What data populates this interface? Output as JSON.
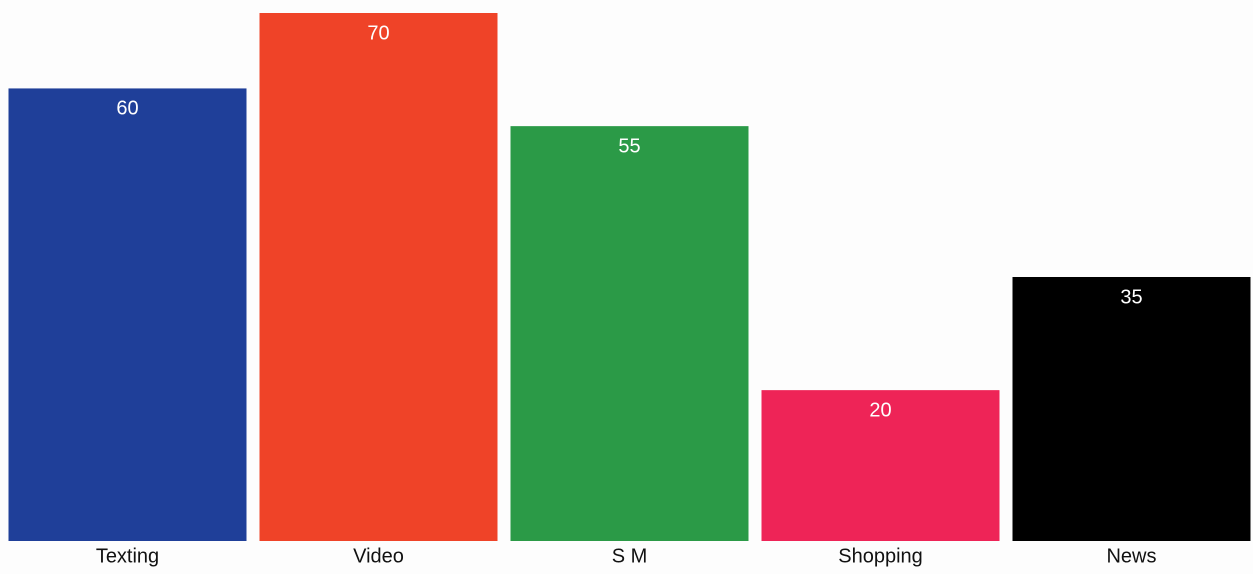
{
  "chart_data": {
    "type": "bar",
    "categories": [
      "Texting",
      "Video",
      "S M",
      "Shopping",
      "News"
    ],
    "values": [
      60,
      70,
      55,
      20,
      35
    ],
    "colors": [
      "#1f3f99",
      "#ef4328",
      "#2b9a47",
      "#ee2457",
      "#000000"
    ]
  }
}
